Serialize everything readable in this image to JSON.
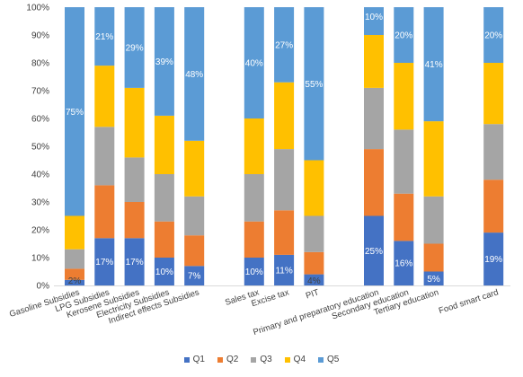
{
  "chart_data": {
    "type": "bar",
    "stacked": true,
    "normalized": true,
    "title": "",
    "xlabel": "",
    "ylabel": "",
    "ylim": [
      0,
      100
    ],
    "yticks": [
      "0%",
      "10%",
      "20%",
      "30%",
      "40%",
      "50%",
      "60%",
      "70%",
      "80%",
      "90%",
      "100%"
    ],
    "grid": false,
    "legend_position": "bottom",
    "categories": [
      "Gasoline Subsidies",
      "LPG Subsidies",
      "Kerosene Subsidies",
      "Electricity Subsidies",
      "Indirect effects Subsidies",
      "",
      "Sales tax",
      "Excise tax",
      "PIT",
      "",
      "Primary and preparatory education",
      "Secondary education",
      "Tertiary education",
      "",
      "Food smart card"
    ],
    "series": [
      {
        "name": "Q1",
        "color": "#4472C4",
        "values": [
          2,
          17,
          17,
          10,
          7,
          null,
          10,
          11,
          4,
          null,
          25,
          16,
          5,
          null,
          19
        ]
      },
      {
        "name": "Q2",
        "color": "#ED7D31",
        "values": [
          4,
          19,
          13,
          13,
          11,
          null,
          13,
          16,
          8,
          null,
          24,
          17,
          10,
          null,
          19
        ]
      },
      {
        "name": "Q3",
        "color": "#A5A5A5",
        "values": [
          7,
          21,
          16,
          17,
          14,
          null,
          17,
          22,
          13,
          null,
          22,
          23,
          17,
          null,
          20
        ]
      },
      {
        "name": "Q4",
        "color": "#FFC000",
        "values": [
          12,
          22,
          25,
          21,
          20,
          null,
          20,
          24,
          20,
          null,
          19,
          24,
          27,
          null,
          22
        ]
      },
      {
        "name": "Q5",
        "color": "#5B9BD5",
        "values": [
          75,
          21,
          29,
          39,
          48,
          null,
          40,
          27,
          55,
          null,
          10,
          20,
          41,
          null,
          20
        ]
      }
    ],
    "data_labels": [
      {
        "category": 0,
        "series": 4,
        "text": "75%"
      },
      {
        "category": 0,
        "series": 0,
        "text": "2%"
      },
      {
        "category": 1,
        "series": 4,
        "text": "21%"
      },
      {
        "category": 1,
        "series": 0,
        "text": "17%"
      },
      {
        "category": 2,
        "series": 4,
        "text": "29%"
      },
      {
        "category": 2,
        "series": 0,
        "text": "17%"
      },
      {
        "category": 3,
        "series": 4,
        "text": "39%"
      },
      {
        "category": 3,
        "series": 0,
        "text": "10%"
      },
      {
        "category": 4,
        "series": 4,
        "text": "48%"
      },
      {
        "category": 4,
        "series": 0,
        "text": "7%"
      },
      {
        "category": 6,
        "series": 4,
        "text": "40%"
      },
      {
        "category": 6,
        "series": 0,
        "text": "10%"
      },
      {
        "category": 7,
        "series": 4,
        "text": "27%"
      },
      {
        "category": 7,
        "series": 0,
        "text": "11%"
      },
      {
        "category": 8,
        "series": 4,
        "text": "55%"
      },
      {
        "category": 8,
        "series": 0,
        "text": "4%"
      },
      {
        "category": 10,
        "series": 4,
        "text": "10%"
      },
      {
        "category": 10,
        "series": 0,
        "text": "25%"
      },
      {
        "category": 11,
        "series": 4,
        "text": "20%"
      },
      {
        "category": 11,
        "series": 0,
        "text": "16%"
      },
      {
        "category": 12,
        "series": 4,
        "text": "41%"
      },
      {
        "category": 12,
        "series": 0,
        "text": "5%"
      },
      {
        "category": 14,
        "series": 4,
        "text": "20%"
      },
      {
        "category": 14,
        "series": 0,
        "text": "19%"
      }
    ]
  }
}
